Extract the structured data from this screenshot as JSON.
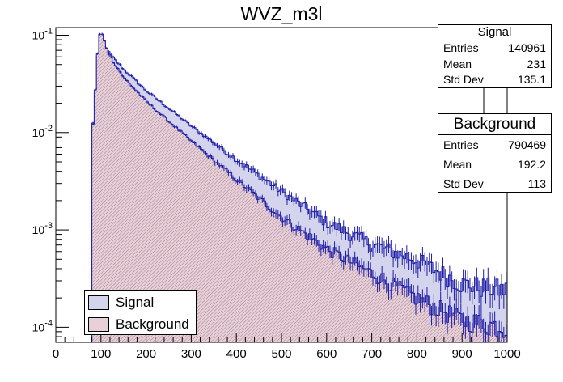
{
  "chart_data": {
    "type": "histogram",
    "title": "WVZ_m3l",
    "xlim": [
      0,
      1000
    ],
    "ylim": [
      7e-05,
      0.12
    ],
    "yscale": "log",
    "x_ticks": [
      0,
      100,
      200,
      300,
      400,
      500,
      600,
      700,
      800,
      900,
      1000
    ],
    "y_tick_labels": [
      "10^-1",
      "10^-2",
      "10^-3",
      "10^-4"
    ],
    "y_tick_values": [
      0.1,
      0.01,
      0.001,
      0.0001
    ],
    "bin_width": 5,
    "series": [
      {
        "name": "Signal",
        "fill_color": "#d4d4ec",
        "line_color": "#1c1ca8",
        "points": [
          [
            80,
            0.0088
          ],
          [
            85,
            0.0175
          ],
          [
            90,
            0.041
          ],
          [
            95,
            0.09
          ],
          [
            100,
            0.1
          ],
          [
            110,
            0.074
          ],
          [
            120,
            0.064
          ],
          [
            150,
            0.045
          ],
          [
            200,
            0.027
          ],
          [
            300,
            0.0117
          ],
          [
            400,
            0.0053
          ],
          [
            500,
            0.0025
          ],
          [
            600,
            0.0012
          ],
          [
            700,
            0.00072
          ],
          [
            800,
            0.00049
          ],
          [
            900,
            0.00028
          ],
          [
            1000,
            0.00024
          ]
        ]
      },
      {
        "name": "Background",
        "fill_color": "#e8d0d8",
        "line_color": "#1c1ca8",
        "points": [
          [
            80,
            0.0088
          ],
          [
            85,
            0.0175
          ],
          [
            90,
            0.043
          ],
          [
            95,
            0.095
          ],
          [
            100,
            0.11
          ],
          [
            110,
            0.08
          ],
          [
            120,
            0.061
          ],
          [
            150,
            0.037
          ],
          [
            200,
            0.021
          ],
          [
            300,
            0.0082
          ],
          [
            400,
            0.0033
          ],
          [
            500,
            0.00136
          ],
          [
            600,
            0.00064
          ],
          [
            700,
            0.00036
          ],
          [
            800,
            0.0002
          ],
          [
            900,
            0.00012
          ],
          [
            1000,
            0.0001
          ]
        ]
      }
    ],
    "legend": {
      "position": "bottom-left",
      "entries": [
        "Signal",
        "Background"
      ]
    },
    "stats": {
      "signal": {
        "title": "Signal",
        "rows": [
          [
            "Entries",
            "140961"
          ],
          [
            "Mean",
            "231"
          ],
          [
            "Std Dev",
            "135.1"
          ]
        ]
      },
      "background": {
        "title": "Background",
        "rows": [
          [
            "Entries",
            "790469"
          ],
          [
            "Mean",
            "192.2"
          ],
          [
            "Std Dev",
            "113"
          ]
        ]
      }
    }
  }
}
